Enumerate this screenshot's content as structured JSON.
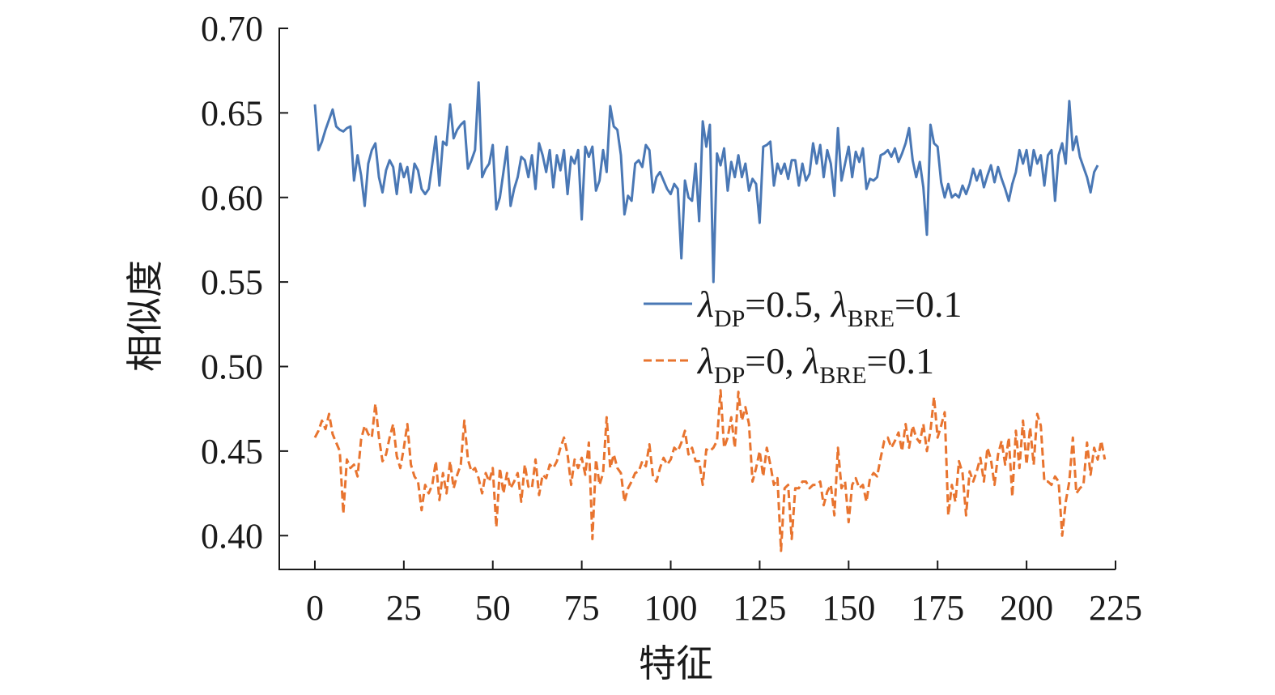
{
  "chart_data": {
    "type": "line",
    "xlabel": "特征",
    "ylabel": "相似度",
    "xlim": [
      -10,
      225
    ],
    "ylim": [
      0.38,
      0.7
    ],
    "xticks": [
      "0",
      "25",
      "50",
      "75",
      "100",
      "125",
      "150",
      "175",
      "200",
      "225"
    ],
    "yticks": [
      "0.40",
      "0.45",
      "0.50",
      "0.55",
      "0.60",
      "0.65",
      "0.70"
    ],
    "grid": false,
    "legend_position": "center-right",
    "series": [
      {
        "name": "λDP=0.5, λBRE=0.1",
        "legend_parts": {
          "sym1": "λ",
          "sub1": "DP",
          "mid": "=0.5, ",
          "sym2": "λ",
          "sub2": "BRE",
          "tail": "=0.1"
        },
        "color": "#4a78b5",
        "dash": "solid",
        "values": [
          0.655,
          0.628,
          0.633,
          0.64,
          0.646,
          0.652,
          0.642,
          0.64,
          0.639,
          0.641,
          0.642,
          0.61,
          0.625,
          0.613,
          0.595,
          0.62,
          0.628,
          0.632,
          0.612,
          0.603,
          0.616,
          0.622,
          0.618,
          0.602,
          0.62,
          0.612,
          0.618,
          0.603,
          0.62,
          0.616,
          0.605,
          0.602,
          0.605,
          0.62,
          0.636,
          0.607,
          0.633,
          0.631,
          0.655,
          0.635,
          0.64,
          0.643,
          0.645,
          0.617,
          0.622,
          0.628,
          0.668,
          0.612,
          0.617,
          0.62,
          0.631,
          0.593,
          0.6,
          0.615,
          0.63,
          0.595,
          0.605,
          0.612,
          0.624,
          0.622,
          0.612,
          0.625,
          0.605,
          0.632,
          0.625,
          0.615,
          0.628,
          0.606,
          0.625,
          0.616,
          0.628,
          0.602,
          0.624,
          0.62,
          0.628,
          0.587,
          0.63,
          0.624,
          0.63,
          0.604,
          0.61,
          0.628,
          0.615,
          0.654,
          0.642,
          0.64,
          0.625,
          0.59,
          0.601,
          0.598,
          0.62,
          0.622,
          0.618,
          0.631,
          0.628,
          0.603,
          0.612,
          0.615,
          0.61,
          0.605,
          0.602,
          0.608,
          0.605,
          0.564,
          0.61,
          0.6,
          0.598,
          0.62,
          0.586,
          0.645,
          0.63,
          0.643,
          0.55,
          0.626,
          0.619,
          0.629,
          0.604,
          0.621,
          0.612,
          0.625,
          0.612,
          0.62,
          0.604,
          0.611,
          0.608,
          0.585,
          0.63,
          0.631,
          0.633,
          0.607,
          0.62,
          0.614,
          0.62,
          0.611,
          0.622,
          0.622,
          0.607,
          0.62,
          0.61,
          0.614,
          0.632,
          0.62,
          0.631,
          0.612,
          0.628,
          0.62,
          0.601,
          0.641,
          0.61,
          0.62,
          0.63,
          0.612,
          0.627,
          0.621,
          0.629,
          0.605,
          0.611,
          0.61,
          0.612,
          0.625,
          0.626,
          0.628,
          0.624,
          0.629,
          0.621,
          0.626,
          0.632,
          0.641,
          0.622,
          0.612,
          0.621,
          0.606,
          0.578,
          0.643,
          0.632,
          0.63,
          0.609,
          0.6,
          0.608,
          0.6,
          0.602,
          0.6,
          0.607,
          0.602,
          0.608,
          0.617,
          0.61,
          0.616,
          0.606,
          0.613,
          0.619,
          0.609,
          0.618,
          0.611,
          0.605,
          0.598,
          0.608,
          0.615,
          0.628,
          0.62,
          0.628,
          0.613,
          0.628,
          0.62,
          0.625,
          0.607,
          0.625,
          0.628,
          0.598,
          0.625,
          0.632,
          0.62,
          0.657,
          0.628,
          0.636,
          0.624,
          0.618,
          0.612,
          0.603,
          0.615,
          0.619
        ]
      },
      {
        "name": "λDP=0, λBRE=0.1",
        "legend_parts": {
          "sym1": "λ",
          "sub1": "DP",
          "mid": "=0, ",
          "sym2": "λ",
          "sub2": "BRE",
          "tail": "=0.1"
        },
        "color": "#e8742f",
        "dash": "dashed",
        "values": [
          0.458,
          0.462,
          0.468,
          0.463,
          0.472,
          0.46,
          0.455,
          0.45,
          0.413,
          0.445,
          0.44,
          0.442,
          0.435,
          0.457,
          0.465,
          0.46,
          0.458,
          0.478,
          0.458,
          0.444,
          0.448,
          0.458,
          0.466,
          0.447,
          0.44,
          0.452,
          0.466,
          0.442,
          0.435,
          0.432,
          0.415,
          0.43,
          0.425,
          0.43,
          0.444,
          0.421,
          0.437,
          0.425,
          0.444,
          0.428,
          0.436,
          0.442,
          0.468,
          0.445,
          0.438,
          0.44,
          0.434,
          0.425,
          0.437,
          0.432,
          0.44,
          0.405,
          0.44,
          0.425,
          0.437,
          0.428,
          0.432,
          0.437,
          0.42,
          0.442,
          0.429,
          0.428,
          0.445,
          0.424,
          0.436,
          0.434,
          0.442,
          0.44,
          0.444,
          0.452,
          0.458,
          0.448,
          0.43,
          0.445,
          0.44,
          0.446,
          0.436,
          0.455,
          0.398,
          0.445,
          0.43,
          0.437,
          0.47,
          0.44,
          0.448,
          0.44,
          0.437,
          0.42,
          0.428,
          0.432,
          0.437,
          0.438,
          0.444,
          0.441,
          0.454,
          0.435,
          0.432,
          0.44,
          0.446,
          0.442,
          0.445,
          0.452,
          0.45,
          0.455,
          0.462,
          0.448,
          0.452,
          0.444,
          0.444,
          0.43,
          0.451,
          0.45,
          0.452,
          0.456,
          0.486,
          0.452,
          0.458,
          0.47,
          0.452,
          0.485,
          0.468,
          0.476,
          0.466,
          0.432,
          0.44,
          0.45,
          0.435,
          0.452,
          0.442,
          0.43,
          0.434,
          0.391,
          0.428,
          0.43,
          0.398,
          0.428,
          0.428,
          0.432,
          0.432,
          0.428,
          0.43,
          0.43,
          0.432,
          0.418,
          0.426,
          0.43,
          0.412,
          0.452,
          0.428,
          0.432,
          0.408,
          0.43,
          0.434,
          0.428,
          0.43,
          0.42,
          0.434,
          0.437,
          0.435,
          0.446,
          0.456,
          0.458,
          0.452,
          0.456,
          0.461,
          0.45,
          0.466,
          0.452,
          0.465,
          0.458,
          0.455,
          0.466,
          0.45,
          0.462,
          0.482,
          0.458,
          0.465,
          0.473,
          0.412,
          0.43,
          0.42,
          0.444,
          0.437,
          0.412,
          0.438,
          0.432,
          0.438,
          0.446,
          0.432,
          0.452,
          0.445,
          0.43,
          0.448,
          0.456,
          0.442,
          0.458,
          0.423,
          0.462,
          0.44,
          0.468,
          0.442,
          0.464,
          0.442,
          0.472,
          0.465,
          0.432,
          0.432,
          0.43,
          0.435,
          0.432,
          0.4,
          0.42,
          0.432,
          0.458,
          0.425,
          0.428,
          0.43,
          0.455,
          0.436,
          0.452,
          0.445,
          0.456,
          0.445
        ]
      }
    ]
  }
}
